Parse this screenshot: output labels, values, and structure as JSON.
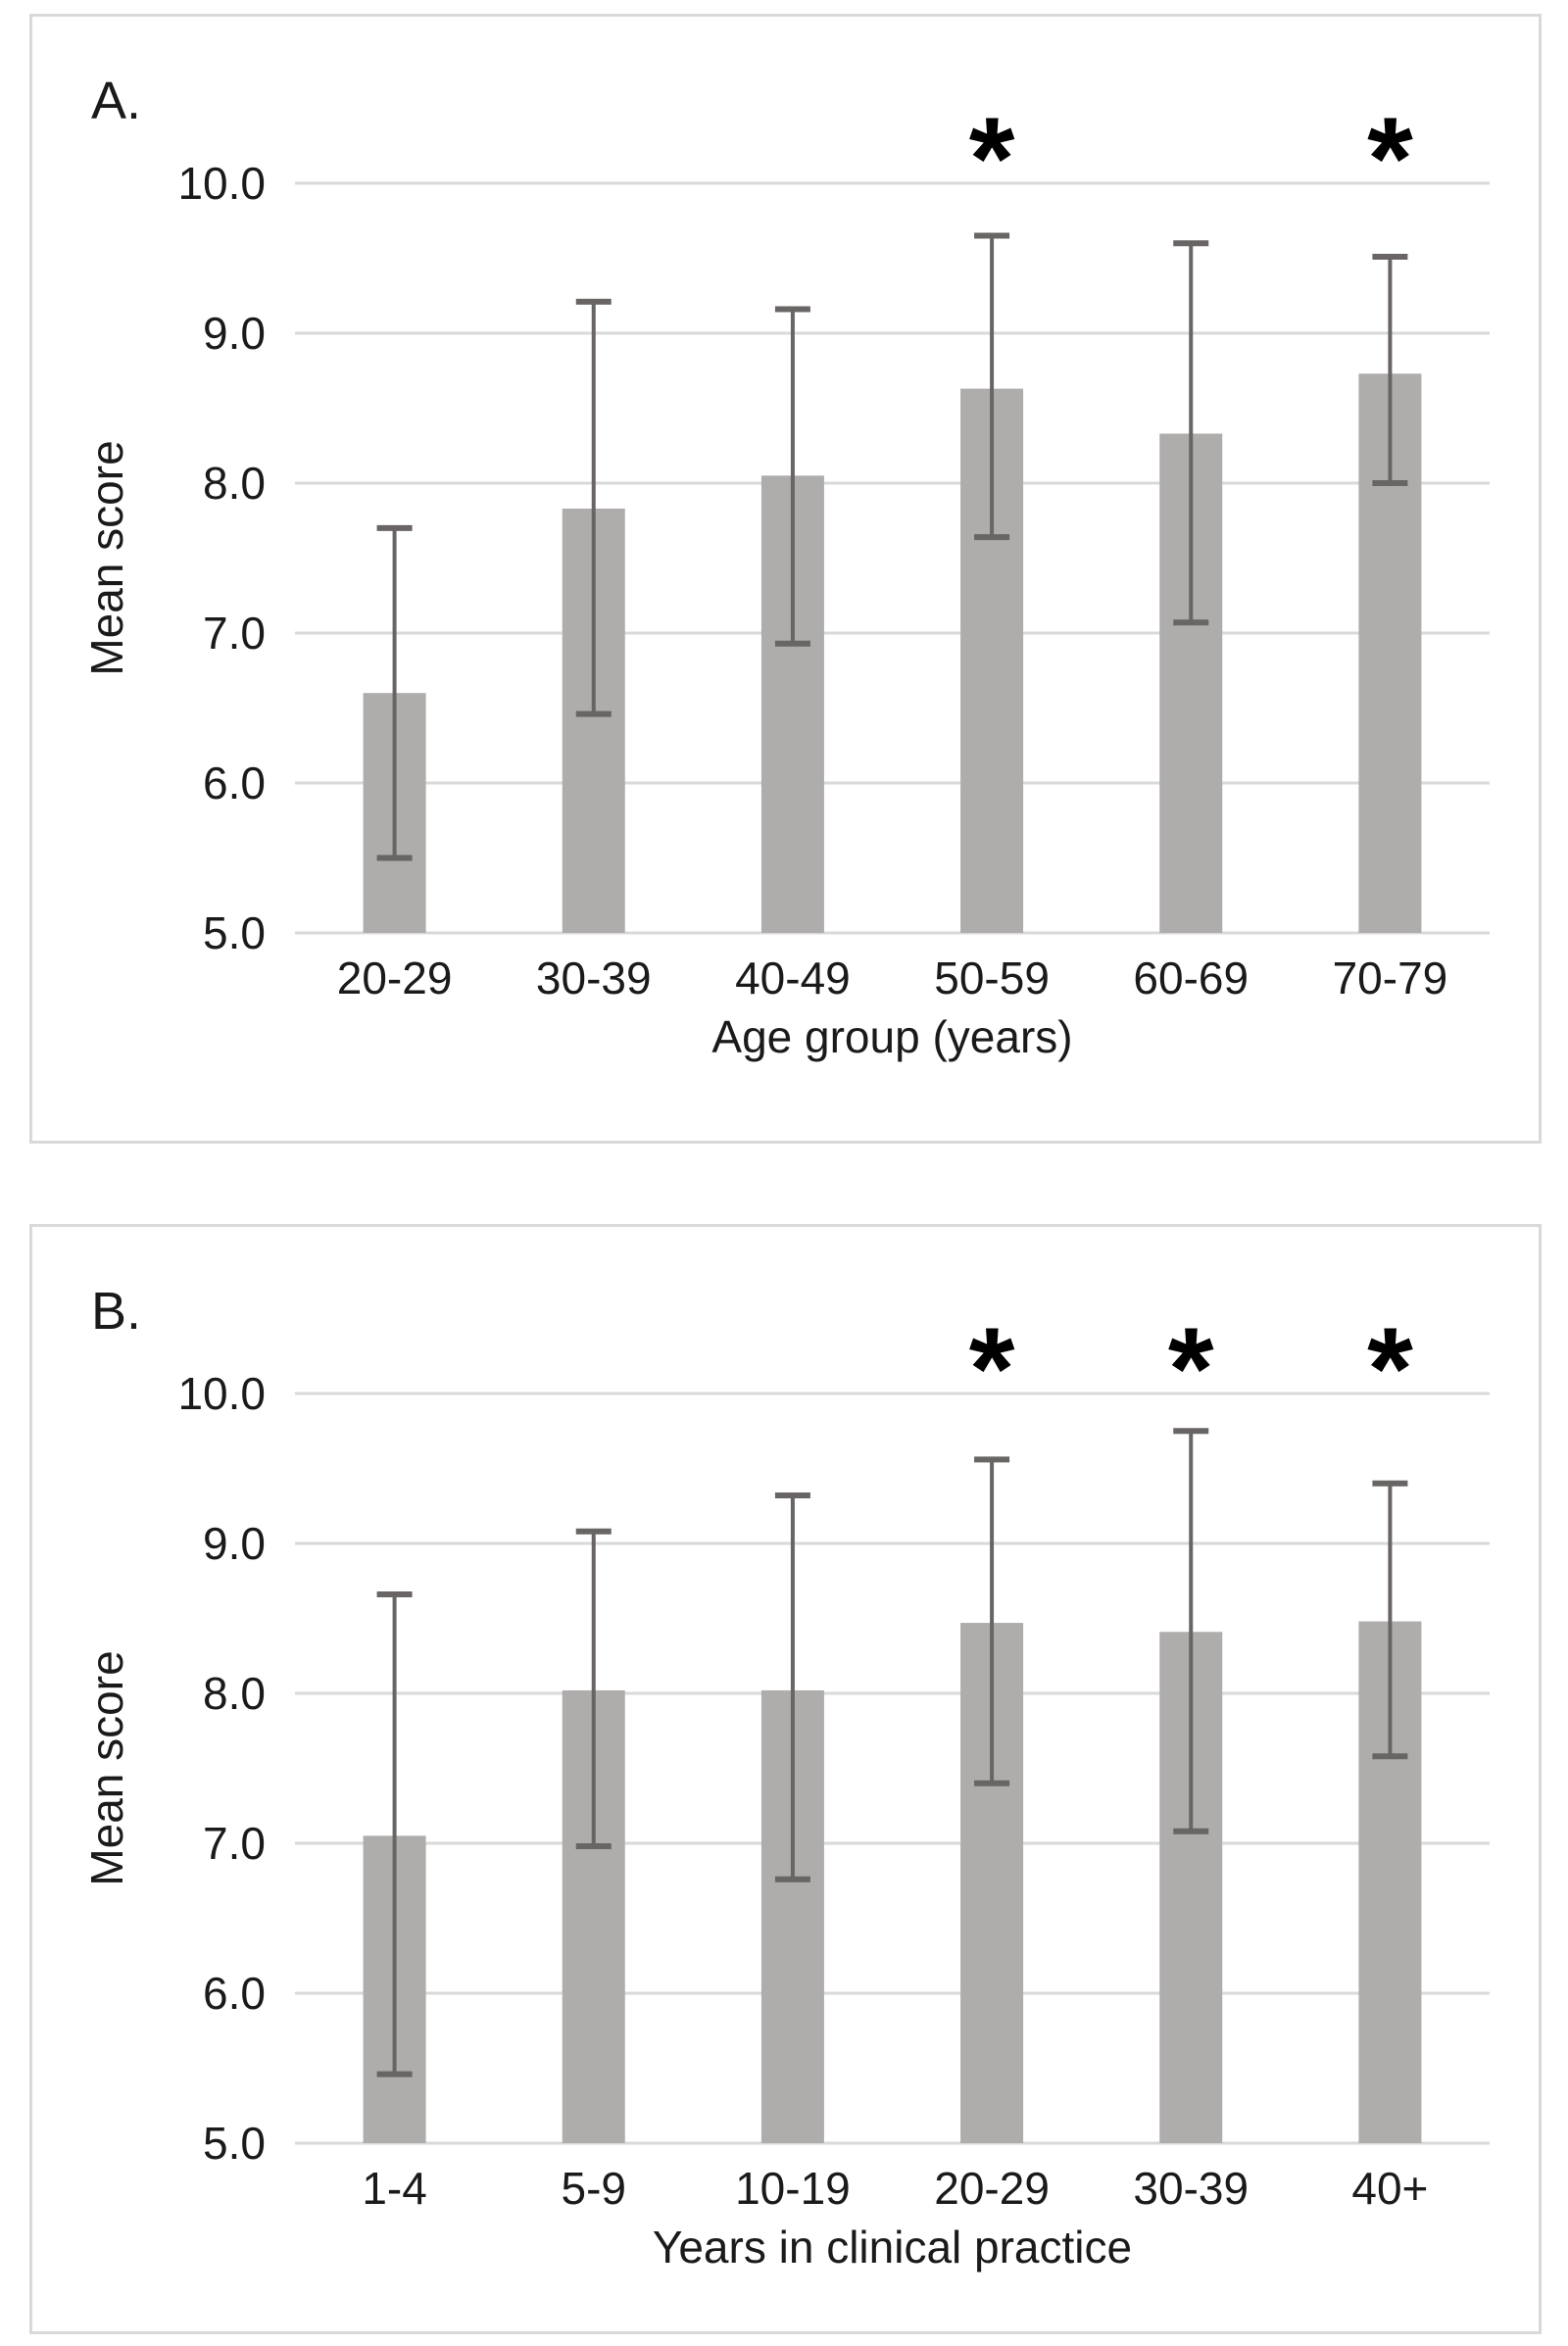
{
  "style": {
    "bar_color": "#afacac",
    "error_bar_color": "#696565",
    "gridline_color": "#d9d9d9",
    "axis_line_color": "#d9d9d9",
    "panel_border_color": "#d9d9d9",
    "text_color": "#1a1a1a",
    "background_color": "#ffffff",
    "sig_marker_color": "#000000"
  },
  "chart_data": [
    {
      "type": "bar",
      "panel_label": "A.",
      "title": "",
      "xlabel": "Age group (years)",
      "ylabel": "Mean score",
      "categories": [
        "20-29",
        "30-39",
        "40-49",
        "50-59",
        "60-69",
        "70-79"
      ],
      "values": [
        6.6,
        7.83,
        8.05,
        8.63,
        8.33,
        8.73
      ],
      "error_low": [
        5.5,
        6.46,
        6.93,
        7.64,
        7.07,
        8.0
      ],
      "error_high": [
        7.7,
        9.21,
        9.16,
        9.65,
        9.6,
        9.51
      ],
      "significance_marks": [
        "",
        "",
        "",
        "*",
        "",
        "*"
      ],
      "ylim": [
        5.0,
        10.0
      ],
      "ytick_step": 1.0,
      "ytick_labels": [
        "5.0",
        "6.0",
        "7.0",
        "8.0",
        "9.0",
        "10.0"
      ],
      "grid": "horizontal",
      "legend": "none"
    },
    {
      "type": "bar",
      "panel_label": "B.",
      "title": "",
      "xlabel": "Years in clinical practice",
      "ylabel": "Mean score",
      "categories": [
        "1-4",
        "5-9",
        "10-19",
        "20-29",
        "30-39",
        "40+"
      ],
      "values": [
        7.05,
        8.02,
        8.02,
        8.47,
        8.41,
        8.48
      ],
      "error_low": [
        5.46,
        6.98,
        6.76,
        7.4,
        7.08,
        7.58
      ],
      "error_high": [
        8.66,
        9.08,
        9.32,
        9.56,
        9.75,
        9.4
      ],
      "significance_marks": [
        "",
        "",
        "",
        "*",
        "*",
        "*"
      ],
      "ylim": [
        5.0,
        10.0
      ],
      "ytick_step": 1.0,
      "ytick_labels": [
        "5.0",
        "6.0",
        "7.0",
        "8.0",
        "9.0",
        "10.0"
      ],
      "grid": "horizontal",
      "legend": "none"
    }
  ]
}
